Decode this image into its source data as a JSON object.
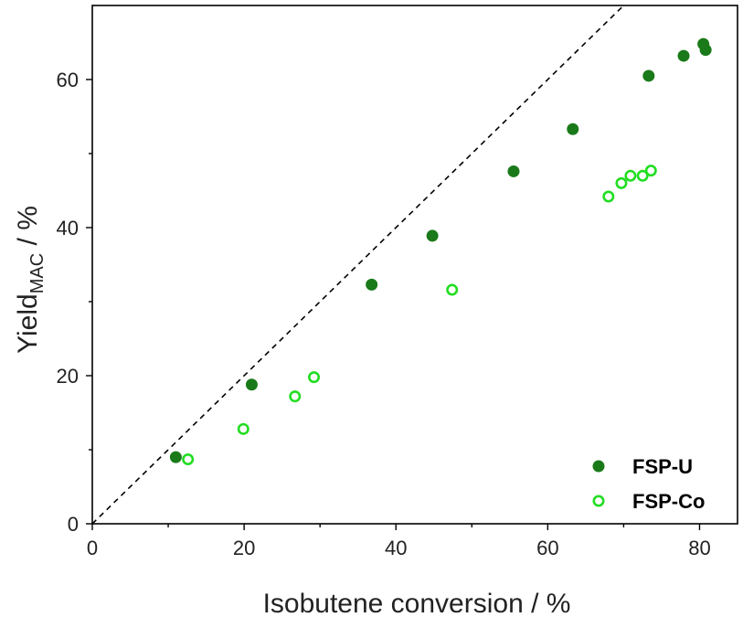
{
  "chart_data": {
    "type": "scatter",
    "xlabel": "Isobutene conversion / %",
    "ylabel_main": "Yield",
    "ylabel_sub": "MAC",
    "ylabel_suffix": " / %",
    "xlim": [
      0,
      85
    ],
    "ylim": [
      0,
      70
    ],
    "xticks": [
      0,
      20,
      40,
      60,
      80
    ],
    "yticks": [
      0,
      20,
      40,
      60
    ],
    "grid": false,
    "legend_position": "bottom-right",
    "reference_line": {
      "style": "dashed",
      "color": "#000000",
      "points": [
        [
          0,
          0
        ],
        [
          70,
          70
        ]
      ]
    },
    "series": [
      {
        "name": "FSP-U",
        "marker": "filled-circle",
        "color": "#1a7a1a",
        "points": [
          [
            11.0,
            9.0
          ],
          [
            21.0,
            18.8
          ],
          [
            36.8,
            32.3
          ],
          [
            44.8,
            38.9
          ],
          [
            55.5,
            47.6
          ],
          [
            63.3,
            53.3
          ],
          [
            73.3,
            60.5
          ],
          [
            77.9,
            63.2
          ],
          [
            80.5,
            64.8
          ],
          [
            80.8,
            64.0
          ]
        ]
      },
      {
        "name": "FSP-Co",
        "marker": "open-circle",
        "color": "#22dd22",
        "points": [
          [
            12.6,
            8.7
          ],
          [
            19.9,
            12.8
          ],
          [
            26.7,
            17.2
          ],
          [
            29.2,
            19.8
          ],
          [
            47.4,
            31.6
          ],
          [
            68.0,
            44.2
          ],
          [
            69.7,
            46.0
          ],
          [
            70.9,
            47.0
          ],
          [
            72.5,
            47.0
          ],
          [
            73.6,
            47.7
          ]
        ]
      }
    ]
  }
}
